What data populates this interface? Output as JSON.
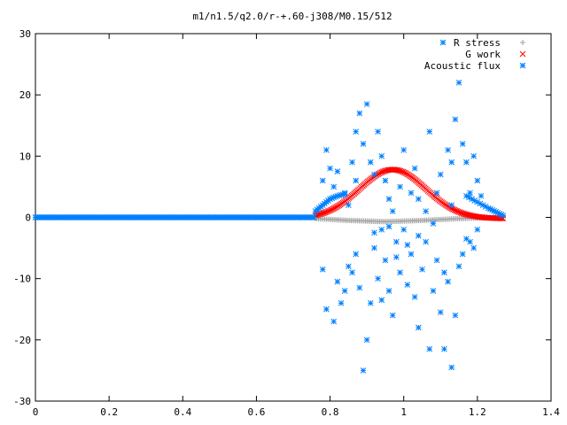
{
  "chart_data": {
    "type": "scatter",
    "title": "m1/n1.5/q2.0/r-+.60-j308/M0.15/512",
    "xlabel": "",
    "ylabel": "",
    "xlim": [
      0,
      1.4
    ],
    "ylim": [
      -30,
      30
    ],
    "xticks": [
      "0",
      "0.2",
      "0.4",
      "0.6",
      "0.8",
      "1",
      "1.2",
      "1.4"
    ],
    "yticks": [
      "30",
      "20",
      "10",
      "0",
      "-10",
      "-20",
      "-30"
    ],
    "grid": false,
    "legend_position": "top-right",
    "series": [
      {
        "name": "R stress",
        "marker": "plus",
        "color": "#a0a0a0",
        "curve": {
          "kind": "line-range",
          "x_start": 0.76,
          "x_end": 1.27,
          "points": 120
        },
        "envelope": [
          [
            0.76,
            -0.2
          ],
          [
            0.85,
            -0.5
          ],
          [
            0.95,
            -0.7
          ],
          [
            1.05,
            -0.5
          ],
          [
            1.15,
            -0.2
          ],
          [
            1.27,
            0.0
          ]
        ]
      },
      {
        "name": "G work",
        "marker": "cross",
        "color": "#ff0000",
        "curve": {
          "kind": "bump",
          "x_start": 0.76,
          "x_end": 1.27,
          "peak_x": 0.97,
          "peak_y": 8,
          "width": 0.09,
          "points": 150
        }
      },
      {
        "name": "Acoustic flux",
        "marker": "star",
        "color": "#0080ff",
        "baseline": {
          "x_start": 0.0,
          "x_end": 0.76,
          "y": 0
        },
        "edge_rise": [
          [
            0.76,
            1.0
          ],
          [
            0.78,
            2.0
          ],
          [
            0.8,
            3.0
          ],
          [
            0.82,
            3.5
          ],
          [
            0.84,
            3.8
          ]
        ],
        "edge_fall": [
          [
            1.17,
            3.5
          ],
          [
            1.2,
            2.5
          ],
          [
            1.23,
            1.5
          ],
          [
            1.25,
            0.9
          ],
          [
            1.27,
            0.3
          ]
        ],
        "scatter_points": [
          [
            0.79,
            11
          ],
          [
            0.8,
            8
          ],
          [
            0.78,
            6
          ],
          [
            0.81,
            5
          ],
          [
            0.82,
            7.5
          ],
          [
            0.84,
            4
          ],
          [
            0.86,
            9
          ],
          [
            0.87,
            14
          ],
          [
            0.88,
            17
          ],
          [
            0.9,
            18.5
          ],
          [
            0.89,
            12
          ],
          [
            0.91,
            9
          ],
          [
            0.92,
            7
          ],
          [
            0.85,
            2
          ],
          [
            0.87,
            6
          ],
          [
            0.93,
            14
          ],
          [
            0.94,
            10
          ],
          [
            0.95,
            6
          ],
          [
            0.96,
            3
          ],
          [
            0.97,
            1
          ],
          [
            0.99,
            5
          ],
          [
            1.0,
            11
          ],
          [
            1.02,
            4
          ],
          [
            1.03,
            8
          ],
          [
            1.04,
            3
          ],
          [
            1.06,
            1
          ],
          [
            1.07,
            14
          ],
          [
            1.09,
            4
          ],
          [
            1.1,
            7
          ],
          [
            1.12,
            11
          ],
          [
            1.13,
            9
          ],
          [
            1.14,
            16
          ],
          [
            1.15,
            22
          ],
          [
            1.16,
            12
          ],
          [
            1.17,
            9
          ],
          [
            1.19,
            10
          ],
          [
            1.2,
            6
          ],
          [
            1.18,
            4
          ],
          [
            1.21,
            3.5
          ],
          [
            1.13,
            2
          ],
          [
            0.78,
            -8.5
          ],
          [
            0.79,
            -15
          ],
          [
            0.81,
            -17
          ],
          [
            0.82,
            -10.5
          ],
          [
            0.83,
            -14
          ],
          [
            0.84,
            -12
          ],
          [
            0.85,
            -8
          ],
          [
            0.86,
            -9
          ],
          [
            0.87,
            -6
          ],
          [
            0.88,
            -11.5
          ],
          [
            0.89,
            -25
          ],
          [
            0.9,
            -20
          ],
          [
            0.91,
            -14
          ],
          [
            0.92,
            -5
          ],
          [
            0.93,
            -10
          ],
          [
            0.94,
            -2
          ],
          [
            0.95,
            -7
          ],
          [
            0.96,
            -12
          ],
          [
            0.97,
            -16
          ],
          [
            0.98,
            -4
          ],
          [
            0.99,
            -9
          ],
          [
            1.0,
            -2
          ],
          [
            1.01,
            -11
          ],
          [
            1.02,
            -6
          ],
          [
            1.03,
            -13
          ],
          [
            1.04,
            -3
          ],
          [
            1.05,
            -8.5
          ],
          [
            1.06,
            -4
          ],
          [
            1.07,
            -21.5
          ],
          [
            1.08,
            -12
          ],
          [
            1.09,
            -7
          ],
          [
            1.1,
            -15.5
          ],
          [
            1.11,
            -21.5
          ],
          [
            1.12,
            -10.5
          ],
          [
            1.13,
            -24.5
          ],
          [
            1.14,
            -16
          ],
          [
            1.15,
            -8
          ],
          [
            1.16,
            -6
          ],
          [
            1.17,
            -3.5
          ],
          [
            1.18,
            -4
          ],
          [
            1.19,
            -5
          ],
          [
            1.2,
            -2
          ],
          [
            1.08,
            -1
          ],
          [
            0.96,
            -1.5
          ],
          [
            1.01,
            -4.5
          ],
          [
            0.92,
            -2.5
          ],
          [
            0.94,
            -13.5
          ],
          [
            1.04,
            -18
          ],
          [
            0.98,
            -6.5
          ],
          [
            1.11,
            -9
          ]
        ]
      }
    ]
  }
}
